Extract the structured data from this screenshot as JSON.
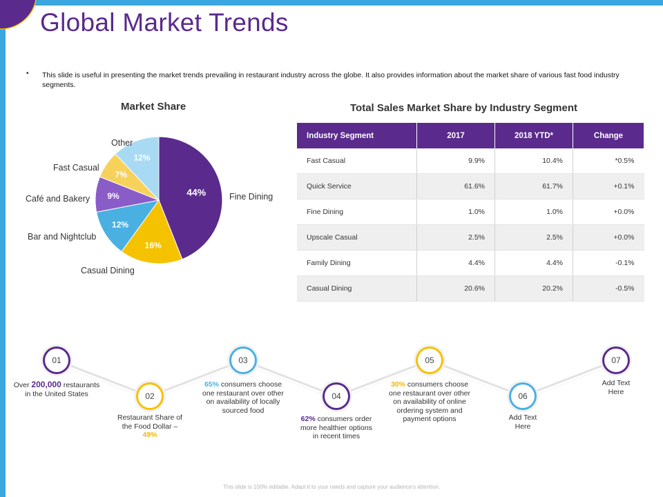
{
  "title": "Global Market Trends",
  "bullet": "This slide is useful in presenting the market trends prevailing in restaurant industry across the globe. It also provides information about the market share of various  fast food industry segments.",
  "chart_data": {
    "type": "pie",
    "title": "Market Share",
    "slices": [
      {
        "label": "Fine Dining",
        "value": 44,
        "display": "44%",
        "color": "#5a2a8c"
      },
      {
        "label": "Casual Dining",
        "value": 16,
        "display": "16%",
        "color": "#f5c200"
      },
      {
        "label": "Bar and Nightclub",
        "value": 12,
        "display": "12%",
        "color": "#4ab0e2"
      },
      {
        "label": "Café  and Bakery",
        "value": 9,
        "display": "9%",
        "color": "#8a5cc8"
      },
      {
        "label": "Fast Casual",
        "value": 7,
        "display": "7%",
        "color": "#f7d25a"
      },
      {
        "label": "Other",
        "value": 12,
        "display": "12%",
        "color": "#a9daf3"
      }
    ]
  },
  "table": {
    "title": "Total Sales Market Share by Industry Segment",
    "headers": [
      "Industry Segment",
      "2017",
      "2018 YTD*",
      "Change"
    ],
    "rows": [
      [
        "Fast Casual",
        "9.9%",
        "10.4%",
        "*0.5%"
      ],
      [
        "Quick Service",
        "61.6%",
        "61.7%",
        "+0.1%"
      ],
      [
        "Fine Dining",
        "1.0%",
        "1.0%",
        "+0.0%"
      ],
      [
        "Upscale Casual",
        "2.5%",
        "2.5%",
        "+0.0%"
      ],
      [
        "Family Dining",
        "4.4%",
        "4.4%",
        "-0.1%"
      ],
      [
        "Casual Dining",
        "20.6%",
        "20.2%",
        "-0.5%"
      ]
    ]
  },
  "steps": [
    {
      "num": "01",
      "color": "#5a2a8c",
      "pre": "Over ",
      "hl": "200,000",
      "post": " restaurants in the United States"
    },
    {
      "num": "02",
      "color": "#f5c200",
      "pre": "Restaurant Share of the Food Dollar – ",
      "hl": "49%",
      "post": ""
    },
    {
      "num": "03",
      "color": "#4ab0e2",
      "pre": "",
      "hl": "65%",
      "post": " consumers choose one restaurant over other on availability of locally sourced food"
    },
    {
      "num": "04",
      "color": "#5a2a8c",
      "pre": "",
      "hl": "62%",
      "post": " consumers order more healthier options in recent times"
    },
    {
      "num": "05",
      "color": "#f5c200",
      "pre": "",
      "hl": "30%",
      "post": " consumers choose one restaurant over other on availability of online ordering system and payment options"
    },
    {
      "num": "06",
      "color": "#4ab0e2",
      "pre": "Add Text Here",
      "hl": "",
      "post": ""
    },
    {
      "num": "07",
      "color": "#5a2a8c",
      "pre": "Add Text Here",
      "hl": "",
      "post": ""
    }
  ],
  "footer": "This slide is 100% editable. Adapt it to your needs and capture your audience's attention."
}
